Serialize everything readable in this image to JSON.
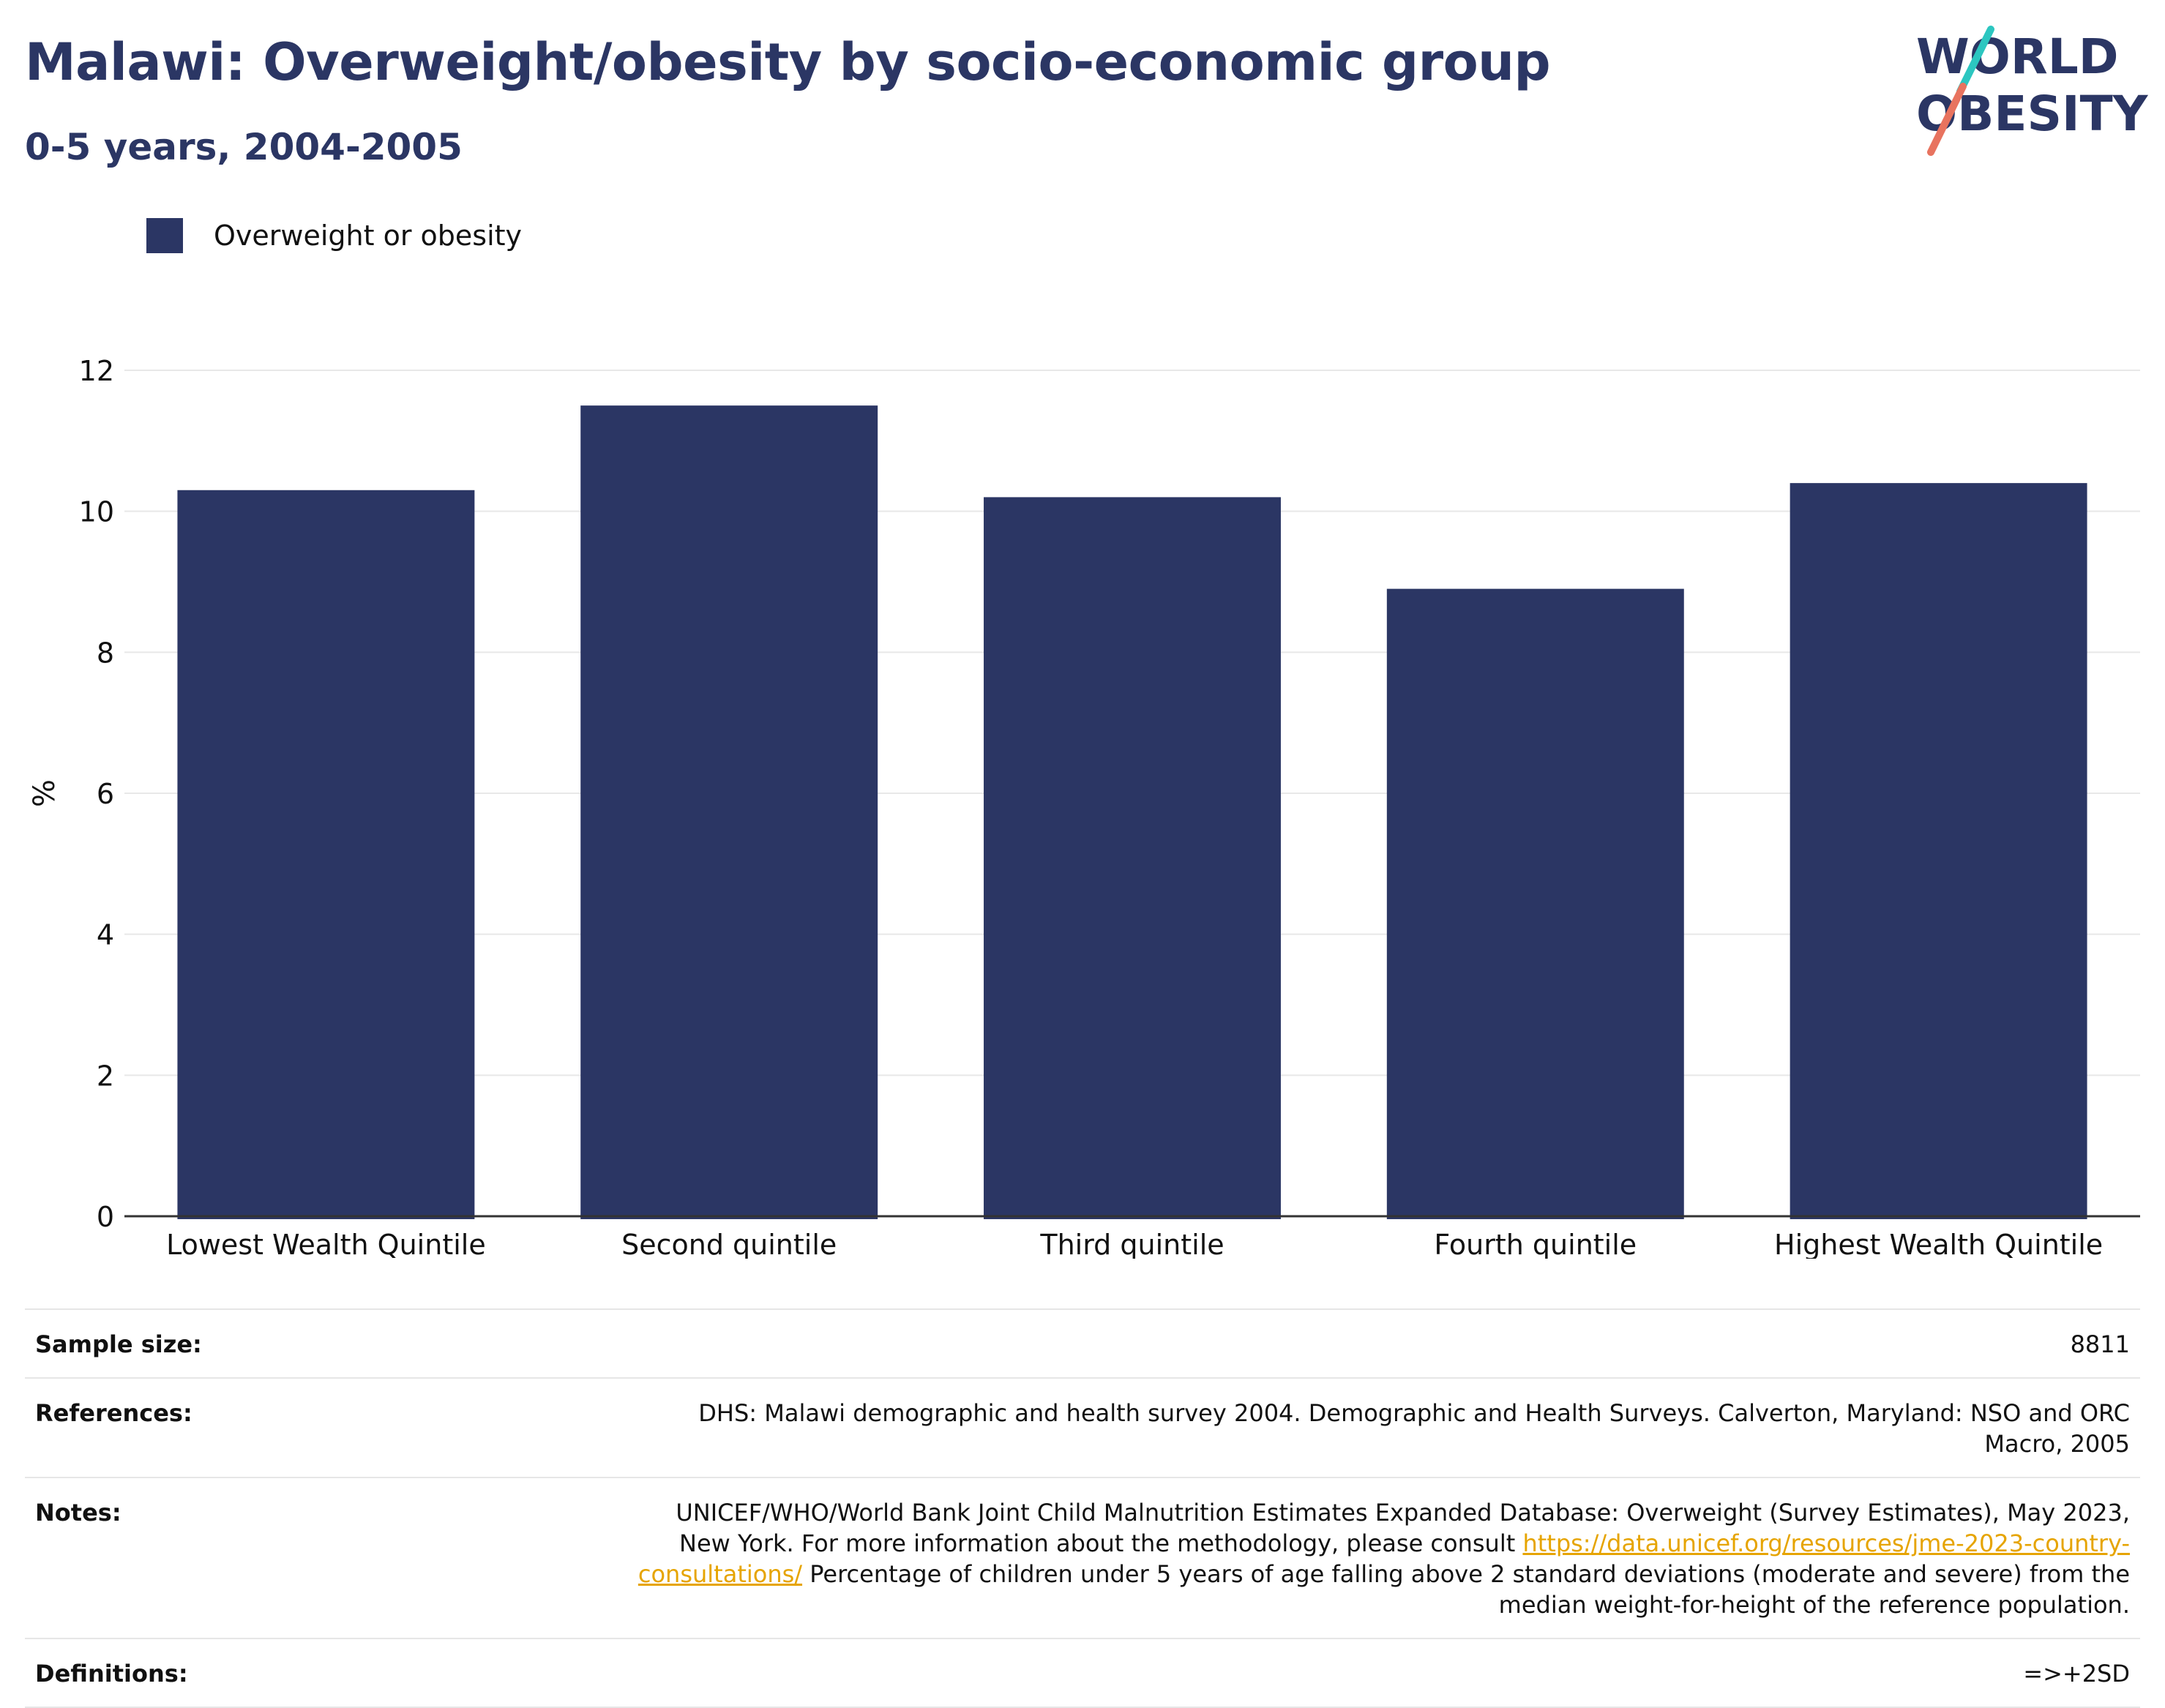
{
  "header": {
    "title": "Malawi: Overweight/obesity by socio-economic group",
    "subtitle": "0-5 years, 2004-2005",
    "logo": {
      "line1": "WORLD",
      "line2": "OBESITY",
      "slash_colors": [
        "#2cc6c0",
        "#e8735f"
      ],
      "text_color": "#2b3664"
    }
  },
  "legend": {
    "label": "Overweight or obesity"
  },
  "chart_data": {
    "type": "bar",
    "categories": [
      "Lowest Wealth Quintile",
      "Second quintile",
      "Third quintile",
      "Fourth quintile",
      "Highest Wealth Quintile"
    ],
    "series": [
      {
        "name": "Overweight or obesity",
        "color": "#2b3664",
        "values": [
          10.3,
          11.5,
          10.2,
          8.9,
          10.4
        ]
      }
    ],
    "ylabel": "%",
    "ylim": [
      0,
      12
    ],
    "yticks": [
      0,
      2,
      4,
      6,
      8,
      10,
      12
    ],
    "grid": true,
    "legend_position": "top-left"
  },
  "meta": {
    "sample_size": {
      "label": "Sample size:",
      "value": "8811"
    },
    "references": {
      "label": "References:",
      "value": "DHS: Malawi demographic and health survey 2004. Demographic and Health Surveys. Calverton, Maryland: NSO and ORC Macro, 2005"
    },
    "notes": {
      "label": "Notes:",
      "text_before": "UNICEF/WHO/World Bank Joint Child Malnutrition Estimates Expanded Database: Overweight (Survey Estimates), May 2023, New York. For more information about the methodology, please consult ",
      "link": "https://data.unicef.org/resources/jme-2023-country-consultations/",
      "text_after": " Percentage of children under 5 years of age falling above 2 standard deviations (moderate and severe) from the median weight-for-height of the reference population."
    },
    "definitions": {
      "label": "Definitions:",
      "value": "=>+2SD"
    }
  }
}
